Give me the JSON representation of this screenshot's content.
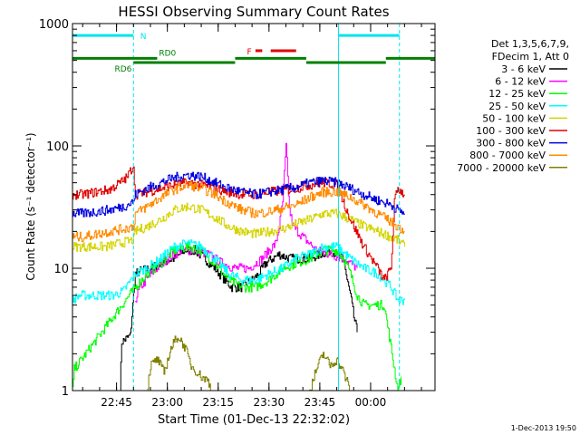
{
  "chart_data": {
    "type": "line",
    "title": "HESSI Observing Summary Count Rates",
    "xlabel": "Start Time (01-Dec-13 22:32:02)",
    "ylabel": "Count Rate (s⁻¹ detector⁻¹)",
    "y_scale": "log",
    "ylim": [
      1,
      1000
    ],
    "xlim_minutes": [
      0,
      107
    ],
    "x_ticks": [
      {
        "label": "22:45",
        "minute": 13
      },
      {
        "label": "23:00",
        "minute": 28
      },
      {
        "label": "23:15",
        "minute": 43
      },
      {
        "label": "23:30",
        "minute": 58
      },
      {
        "label": "23:45",
        "minute": 73
      },
      {
        "label": "00:00",
        "minute": 88
      }
    ],
    "y_ticks": [
      {
        "label": "1000",
        "value": 1000
      },
      {
        "label": "100",
        "value": 100
      },
      {
        "label": "10",
        "value": 10
      },
      {
        "label": "1",
        "value": 1
      }
    ],
    "legend_header": [
      "Det 1,3,5,6,7,9,",
      "FDecim 1, Att 0"
    ],
    "legend_position": "right",
    "footer_stamp": "1-Dec-2013 19:50",
    "flags": {
      "N": {
        "label": "N",
        "color": "#00e5ee",
        "level": 800,
        "segments": [
          [
            0,
            18
          ],
          [
            78.5,
            96.5
          ]
        ]
      },
      "F": {
        "label": "F",
        "color": "#e00000",
        "level": 600,
        "segments": [
          [
            54,
            56
          ],
          [
            58.5,
            66
          ]
        ]
      },
      "RD0": {
        "label": "RD0",
        "color": "#008000",
        "level": 520,
        "segments": [
          [
            0,
            25
          ],
          [
            48,
            69
          ],
          [
            92.5,
            107
          ]
        ]
      },
      "RD6": {
        "label": "RD6",
        "color": "#008000",
        "level": 480,
        "segments": [
          [
            18,
            48
          ],
          [
            69,
            92.5
          ]
        ]
      }
    },
    "saa_markers_minutes": [
      18,
      78.5,
      96.5
    ],
    "series": [
      {
        "name": "3 - 6 keV",
        "color": "#000000",
        "points": [
          [
            14,
            1
          ],
          [
            14.5,
            2.5
          ],
          [
            17,
            2.8
          ],
          [
            18.5,
            9
          ],
          [
            20,
            9.5
          ],
          [
            23,
            10
          ],
          [
            26,
            11
          ],
          [
            30,
            12
          ],
          [
            33,
            14
          ],
          [
            36,
            14
          ],
          [
            39,
            12
          ],
          [
            42,
            10
          ],
          [
            45,
            8
          ],
          [
            47,
            7
          ],
          [
            50,
            7
          ],
          [
            53,
            8
          ],
          [
            55,
            9
          ],
          [
            57,
            11
          ],
          [
            59,
            12
          ],
          [
            61,
            13
          ],
          [
            64,
            12
          ],
          [
            67,
            12
          ],
          [
            70,
            12
          ],
          [
            73,
            13
          ],
          [
            76,
            14
          ],
          [
            78,
            13
          ],
          [
            80,
            12
          ],
          [
            81,
            8
          ],
          [
            82,
            6
          ],
          [
            83,
            4
          ],
          [
            84,
            3
          ]
        ]
      },
      {
        "name": "6 - 12 keV",
        "color": "#ff00ff",
        "points": [
          [
            18.5,
            5.5
          ],
          [
            20,
            7
          ],
          [
            24,
            9.5
          ],
          [
            28,
            12
          ],
          [
            32,
            14
          ],
          [
            36,
            14
          ],
          [
            40,
            13
          ],
          [
            44,
            11
          ],
          [
            48,
            10
          ],
          [
            52,
            10
          ],
          [
            56,
            12
          ],
          [
            58,
            14
          ],
          [
            60,
            16
          ],
          [
            61,
            22
          ],
          [
            62,
            35
          ],
          [
            63,
            100
          ],
          [
            64,
            30
          ],
          [
            65,
            22
          ],
          [
            68,
            18
          ],
          [
            72,
            14
          ],
          [
            76,
            13
          ],
          [
            80,
            12
          ],
          [
            82,
            11
          ],
          [
            84,
            10
          ]
        ]
      },
      {
        "name": "12 - 25 keV",
        "color": "#00ff00",
        "points": [
          [
            0,
            1
          ],
          [
            0.5,
            1.5
          ],
          [
            18.5,
            7
          ],
          [
            22,
            9
          ],
          [
            26,
            11
          ],
          [
            30,
            14
          ],
          [
            34,
            15
          ],
          [
            38,
            14
          ],
          [
            42,
            11
          ],
          [
            46,
            8
          ],
          [
            50,
            7
          ],
          [
            54,
            7
          ],
          [
            58,
            8
          ],
          [
            62,
            10
          ],
          [
            66,
            11
          ],
          [
            70,
            12
          ],
          [
            74,
            14
          ],
          [
            78,
            14
          ],
          [
            80,
            12
          ],
          [
            82,
            9
          ],
          [
            84,
            6
          ],
          [
            86,
            5
          ],
          [
            88,
            5
          ],
          [
            90,
            5
          ],
          [
            92,
            5
          ],
          [
            96,
            1
          ],
          [
            97,
            1.3
          ]
        ]
      },
      {
        "name": "25 - 50 keV",
        "color": "#00ffff",
        "points": [
          [
            0,
            5.5
          ],
          [
            2,
            6
          ],
          [
            5,
            6
          ],
          [
            8,
            6
          ],
          [
            12,
            6
          ],
          [
            15,
            6.5
          ],
          [
            18.5,
            9
          ],
          [
            22,
            10
          ],
          [
            26,
            12
          ],
          [
            30,
            15
          ],
          [
            34,
            16
          ],
          [
            38,
            15
          ],
          [
            42,
            12
          ],
          [
            46,
            9
          ],
          [
            50,
            8
          ],
          [
            54,
            8
          ],
          [
            58,
            9
          ],
          [
            62,
            10
          ],
          [
            66,
            12
          ],
          [
            70,
            13
          ],
          [
            74,
            15
          ],
          [
            78,
            15
          ],
          [
            82,
            12
          ],
          [
            86,
            10
          ],
          [
            90,
            9
          ],
          [
            92,
            8
          ],
          [
            94,
            7
          ],
          [
            96,
            5.5
          ],
          [
            98,
            5.5
          ]
        ]
      },
      {
        "name": "50 - 100 keV",
        "color": "#d4d400",
        "points": [
          [
            0,
            15
          ],
          [
            2,
            15
          ],
          [
            6,
            15
          ],
          [
            10,
            15
          ],
          [
            14,
            16
          ],
          [
            18,
            17
          ],
          [
            18.5,
            20
          ],
          [
            22,
            22
          ],
          [
            26,
            25
          ],
          [
            30,
            30
          ],
          [
            34,
            32
          ],
          [
            38,
            30
          ],
          [
            42,
            26
          ],
          [
            46,
            22
          ],
          [
            50,
            20
          ],
          [
            54,
            19
          ],
          [
            58,
            20
          ],
          [
            62,
            21
          ],
          [
            66,
            23
          ],
          [
            70,
            25
          ],
          [
            74,
            28
          ],
          [
            78,
            28
          ],
          [
            82,
            25
          ],
          [
            86,
            22
          ],
          [
            90,
            20
          ],
          [
            94,
            18
          ],
          [
            96,
            17
          ],
          [
            98,
            15
          ]
        ]
      },
      {
        "name": "100 - 300 keV",
        "color": "#e00000",
        "points": [
          [
            0,
            40
          ],
          [
            3,
            40
          ],
          [
            7,
            42
          ],
          [
            11,
            44
          ],
          [
            14,
            50
          ],
          [
            16,
            55
          ],
          [
            18,
            70
          ],
          [
            18.5,
            40
          ],
          [
            22,
            42
          ],
          [
            26,
            45
          ],
          [
            30,
            48
          ],
          [
            34,
            50
          ],
          [
            38,
            48
          ],
          [
            42,
            45
          ],
          [
            46,
            42
          ],
          [
            50,
            40
          ],
          [
            54,
            40
          ],
          [
            58,
            42
          ],
          [
            62,
            43
          ],
          [
            66,
            45
          ],
          [
            70,
            48
          ],
          [
            74,
            50
          ],
          [
            78,
            48
          ],
          [
            82,
            25
          ],
          [
            86,
            15
          ],
          [
            90,
            10
          ],
          [
            92,
            8
          ],
          [
            94,
            10
          ],
          [
            95,
            35
          ],
          [
            96,
            45
          ],
          [
            98,
            40
          ]
        ]
      },
      {
        "name": "300 - 800 keV",
        "color": "#0000e0",
        "points": [
          [
            0,
            28
          ],
          [
            3,
            28
          ],
          [
            7,
            29
          ],
          [
            11,
            30
          ],
          [
            15,
            32
          ],
          [
            18,
            35
          ],
          [
            18.5,
            40
          ],
          [
            22,
            45
          ],
          [
            26,
            50
          ],
          [
            30,
            55
          ],
          [
            34,
            58
          ],
          [
            38,
            56
          ],
          [
            42,
            50
          ],
          [
            46,
            45
          ],
          [
            50,
            42
          ],
          [
            54,
            40
          ],
          [
            58,
            42
          ],
          [
            62,
            44
          ],
          [
            66,
            46
          ],
          [
            70,
            50
          ],
          [
            74,
            52
          ],
          [
            78,
            50
          ],
          [
            82,
            45
          ],
          [
            86,
            40
          ],
          [
            90,
            36
          ],
          [
            94,
            33
          ],
          [
            96,
            30
          ],
          [
            98,
            28
          ]
        ]
      },
      {
        "name": "800 - 7000 keV",
        "color": "#ff8c00",
        "points": [
          [
            0,
            18
          ],
          [
            3,
            18
          ],
          [
            7,
            19
          ],
          [
            11,
            20
          ],
          [
            15,
            21
          ],
          [
            18,
            22
          ],
          [
            18.5,
            28
          ],
          [
            22,
            32
          ],
          [
            26,
            38
          ],
          [
            30,
            44
          ],
          [
            34,
            48
          ],
          [
            38,
            45
          ],
          [
            42,
            40
          ],
          [
            46,
            34
          ],
          [
            50,
            30
          ],
          [
            54,
            28
          ],
          [
            58,
            29
          ],
          [
            62,
            31
          ],
          [
            66,
            33
          ],
          [
            70,
            38
          ],
          [
            74,
            42
          ],
          [
            78,
            42
          ],
          [
            82,
            38
          ],
          [
            86,
            33
          ],
          [
            90,
            28
          ],
          [
            94,
            24
          ],
          [
            96,
            22
          ],
          [
            98,
            20
          ]
        ]
      },
      {
        "name": "7000 - 20000 keV",
        "color": "#808000",
        "points": [
          [
            0,
            1
          ],
          [
            22,
            1
          ],
          [
            23,
            1.6
          ],
          [
            25,
            1.8
          ],
          [
            27,
            1.4
          ],
          [
            29,
            2.2
          ],
          [
            31,
            2.8
          ],
          [
            33,
            2.3
          ],
          [
            35,
            1.6
          ],
          [
            38,
            1.3
          ],
          [
            40,
            1.2
          ],
          [
            41,
            1
          ],
          [
            70,
            1
          ],
          [
            72,
            1.5
          ],
          [
            74,
            2
          ],
          [
            76,
            1.6
          ],
          [
            78,
            1.8
          ],
          [
            80,
            1.4
          ],
          [
            82,
            1
          ],
          [
            107,
            1
          ]
        ]
      }
    ]
  }
}
